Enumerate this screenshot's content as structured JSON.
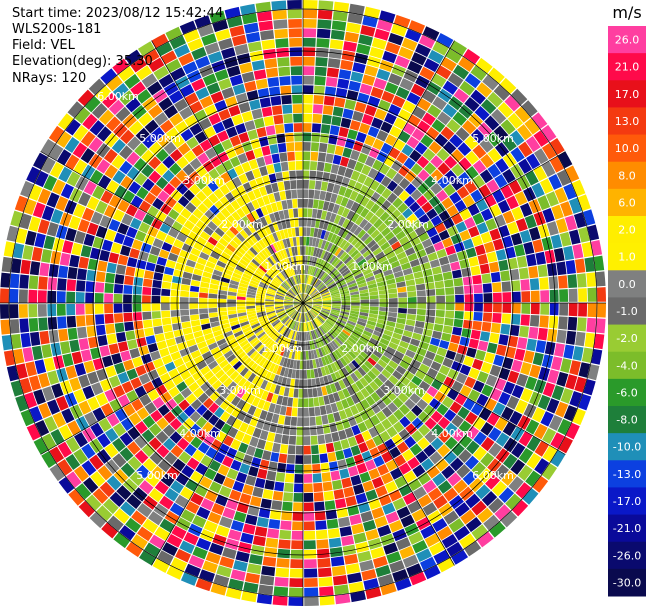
{
  "header": {
    "start_time": "Start time: 2023/08/12 15:42:44",
    "instrument": "WLS200s-181",
    "field": "Field: VEL",
    "elevation": "Elevation(deg): 35.30",
    "nrays": "NRays: 120"
  },
  "chart_data": {
    "type": "heatmap",
    "projection": "polar",
    "field": "VEL",
    "nrays": 120,
    "elevation_deg": 35.3,
    "range_ring_labels": [
      "1.00km",
      "1.00km",
      "1.00km",
      "2.00km",
      "2.00km",
      "2.00km",
      "3.00km",
      "3.00km",
      "3.00km",
      "4.00km",
      "4.00km",
      "4.00km",
      "5.00km",
      "5.00km",
      "5.00km",
      "6.00km",
      "6.00km"
    ],
    "colorbar": {
      "unit": "m/s",
      "tick_labels": [
        "26.0",
        "21.0",
        "17.0",
        "13.0",
        "10.0",
        "8.0",
        "6.0",
        "2.0",
        "1.0",
        "0.0",
        "-1.0",
        "-2.0",
        "-4.0",
        "-6.0",
        "-8.0",
        "-10.0",
        "-13.0",
        "-17.0",
        "-21.0",
        "-26.0",
        "-30.0"
      ],
      "bins": [
        {
          "label": "26.0",
          "color": "#ff3ea0"
        },
        {
          "label": "21.0",
          "color": "#ff0a4a"
        },
        {
          "label": "17.0",
          "color": "#e8101a"
        },
        {
          "label": "13.0",
          "color": "#f43a10"
        },
        {
          "label": "10.0",
          "color": "#ff5a0a"
        },
        {
          "label": "8.0",
          "color": "#ff8c00"
        },
        {
          "label": "6.0",
          "color": "#ffb300"
        },
        {
          "label": "2.0",
          "color": "#ffee00"
        },
        {
          "label": "1.0",
          "color": "#fff000"
        },
        {
          "label": "0.0",
          "color": "#7f8080"
        },
        {
          "label": "-1.0",
          "color": "#6a6a6a"
        },
        {
          "label": "-2.0",
          "color": "#99cc33"
        },
        {
          "label": "-4.0",
          "color": "#7cbd2a"
        },
        {
          "label": "-6.0",
          "color": "#2a9a2a"
        },
        {
          "label": "-8.0",
          "color": "#1e7f3a"
        },
        {
          "label": "-10.0",
          "color": "#1f8fb8"
        },
        {
          "label": "-13.0",
          "color": "#0c40e0"
        },
        {
          "label": "-17.0",
          "color": "#0a18c8"
        },
        {
          "label": "-21.0",
          "color": "#0a0a9a"
        },
        {
          "label": "-26.0",
          "color": "#0a0a6e"
        },
        {
          "label": "-30.0",
          "color": "#0a0a4e"
        }
      ]
    }
  }
}
